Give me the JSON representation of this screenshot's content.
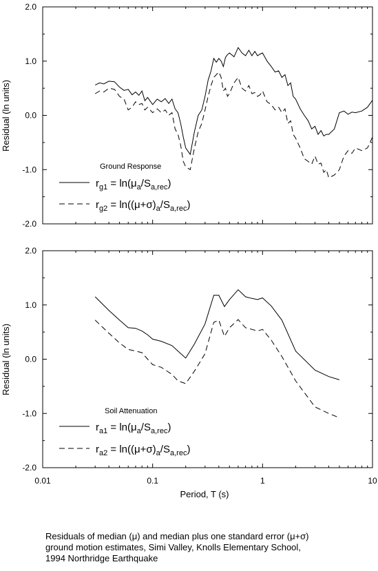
{
  "chart_data": [
    {
      "type": "line",
      "panel": "top",
      "ylabel": "Residual (ln units)",
      "ylim": [
        -2.0,
        2.0
      ],
      "yticks": [
        "2.0",
        "1.0",
        "0.0",
        "-1.0",
        "-2.0"
      ],
      "xscale": "log",
      "xlim": [
        0.01,
        10
      ],
      "legend_title": "Ground Response",
      "grid": false,
      "series": [
        {
          "name": "r_g1 = ln(μ_a/S_a,rec)",
          "legend_label": {
            "main": "r",
            "sub": "g1",
            "eq": " = ln(μ",
            "sub2": "a",
            "mid": "/S",
            "sub3": "a,rec",
            "end": ")"
          },
          "style": "solid",
          "x": [
            0.03,
            0.033,
            0.036,
            0.04,
            0.045,
            0.05,
            0.055,
            0.06,
            0.065,
            0.07,
            0.075,
            0.08,
            0.085,
            0.09,
            0.1,
            0.11,
            0.12,
            0.13,
            0.14,
            0.15,
            0.16,
            0.17,
            0.18,
            0.19,
            0.2,
            0.22,
            0.24,
            0.26,
            0.28,
            0.3,
            0.32,
            0.34,
            0.36,
            0.38,
            0.4,
            0.42,
            0.44,
            0.46,
            0.48,
            0.5,
            0.55,
            0.6,
            0.65,
            0.7,
            0.75,
            0.8,
            0.85,
            0.9,
            0.95,
            1.0,
            1.1,
            1.2,
            1.3,
            1.4,
            1.5,
            1.6,
            1.7,
            1.8,
            1.9,
            2.0,
            2.2,
            2.4,
            2.6,
            2.8,
            3.0,
            3.2,
            3.4,
            3.6,
            3.8,
            4.0,
            4.5,
            5.0,
            5.5,
            6.0,
            6.5,
            7.0,
            8.0,
            9.0,
            10.0
          ],
          "values": [
            0.56,
            0.6,
            0.58,
            0.63,
            0.62,
            0.52,
            0.46,
            0.48,
            0.38,
            0.43,
            0.37,
            0.45,
            0.27,
            0.33,
            0.2,
            0.3,
            0.25,
            0.31,
            0.22,
            0.3,
            0.12,
            0.05,
            -0.15,
            -0.4,
            -0.6,
            -0.72,
            -0.3,
            0.0,
            0.1,
            0.35,
            0.65,
            0.82,
            1.05,
            0.98,
            1.05,
            1.0,
            0.9,
            1.07,
            1.12,
            1.15,
            1.08,
            1.25,
            1.15,
            1.1,
            1.2,
            1.1,
            1.18,
            1.1,
            1.13,
            1.15,
            1.0,
            0.9,
            0.8,
            0.82,
            0.7,
            0.75,
            0.55,
            0.6,
            0.35,
            0.3,
            0.12,
            0.0,
            -0.1,
            -0.25,
            -0.2,
            -0.35,
            -0.28,
            -0.38,
            -0.35,
            -0.35,
            -0.25,
            0.05,
            0.08,
            0.02,
            0.06,
            0.05,
            0.08,
            0.15,
            0.28
          ]
        },
        {
          "name": "r_g2 = ln((μ+σ)_a/S_a,rec)",
          "legend_label": {
            "main": "r",
            "sub": "g2",
            "eq": " = ln((μ+σ)",
            "sub2": "a",
            "mid": "/S",
            "sub3": "a,rec",
            "end": ")"
          },
          "style": "dashed",
          "x": [
            0.03,
            0.033,
            0.036,
            0.04,
            0.045,
            0.05,
            0.055,
            0.06,
            0.065,
            0.07,
            0.075,
            0.08,
            0.085,
            0.09,
            0.1,
            0.11,
            0.12,
            0.13,
            0.14,
            0.15,
            0.16,
            0.17,
            0.18,
            0.19,
            0.2,
            0.22,
            0.24,
            0.26,
            0.28,
            0.3,
            0.32,
            0.34,
            0.36,
            0.38,
            0.4,
            0.42,
            0.44,
            0.46,
            0.48,
            0.5,
            0.55,
            0.6,
            0.65,
            0.7,
            0.75,
            0.8,
            0.85,
            0.9,
            0.95,
            1.0,
            1.1,
            1.2,
            1.3,
            1.4,
            1.5,
            1.6,
            1.7,
            1.8,
            1.9,
            2.0,
            2.2,
            2.4,
            2.6,
            2.8,
            3.0,
            3.2,
            3.4,
            3.6,
            3.8,
            4.0,
            4.5,
            5.0,
            5.5,
            6.0,
            6.5,
            7.0,
            8.0,
            9.0,
            10.0
          ],
          "values": [
            0.4,
            0.45,
            0.43,
            0.5,
            0.48,
            0.35,
            0.3,
            0.1,
            0.15,
            0.25,
            0.2,
            0.22,
            0.1,
            0.15,
            0.05,
            0.12,
            0.05,
            0.1,
            0.0,
            0.05,
            -0.25,
            -0.35,
            -0.55,
            -0.85,
            -0.95,
            -1.0,
            -0.6,
            -0.3,
            -0.15,
            0.1,
            0.35,
            0.55,
            0.7,
            0.75,
            0.8,
            0.7,
            0.45,
            0.5,
            0.35,
            0.4,
            0.6,
            0.7,
            0.5,
            0.45,
            0.55,
            0.4,
            0.42,
            0.35,
            0.38,
            0.45,
            0.25,
            0.2,
            0.1,
            0.15,
            0.05,
            0.12,
            -0.15,
            -0.1,
            -0.35,
            -0.42,
            -0.6,
            -0.8,
            -0.85,
            -0.9,
            -0.75,
            -0.9,
            -0.88,
            -1.05,
            -1.0,
            -1.15,
            -1.1,
            -1.0,
            -0.75,
            -0.65,
            -0.7,
            -0.6,
            -0.65,
            -0.6,
            -0.4
          ]
        }
      ]
    },
    {
      "type": "line",
      "panel": "bottom",
      "ylabel": "Residual (ln units)",
      "xlabel": "Period, T (s)",
      "ylim": [
        -2.0,
        2.0
      ],
      "yticks": [
        "2.0",
        "1.0",
        "0.0",
        "-1.0",
        "-2.0"
      ],
      "xscale": "log",
      "xlim": [
        0.01,
        10
      ],
      "xticks": [
        "0.01",
        "0.1",
        "1",
        "10"
      ],
      "legend_title": "Soil Attenuation",
      "grid": false,
      "series": [
        {
          "name": "r_a1 = ln(μ_a/S_a,rec)",
          "legend_label": {
            "main": "r",
            "sub": "a1",
            "eq": " = ln(μ",
            "sub2": "a",
            "mid": "/S",
            "sub3": "a,rec",
            "end": ")"
          },
          "style": "solid",
          "x": [
            0.03,
            0.04,
            0.05,
            0.06,
            0.07,
            0.08,
            0.09,
            0.1,
            0.12,
            0.15,
            0.17,
            0.2,
            0.24,
            0.3,
            0.36,
            0.4,
            0.45,
            0.5,
            0.6,
            0.7,
            0.8,
            0.9,
            1.0,
            1.2,
            1.5,
            2.0,
            3.0,
            4.0,
            5.0
          ],
          "values": [
            1.15,
            0.9,
            0.72,
            0.58,
            0.57,
            0.52,
            0.45,
            0.37,
            0.33,
            0.25,
            0.15,
            0.02,
            0.28,
            0.65,
            1.18,
            1.18,
            0.97,
            1.1,
            1.28,
            1.15,
            1.12,
            1.1,
            1.13,
            0.98,
            0.72,
            0.15,
            -0.2,
            -0.32,
            -0.38
          ]
        },
        {
          "name": "r_a2 = ln((μ+σ)_a/S_a,rec)",
          "legend_label": {
            "main": "r",
            "sub": "a2",
            "eq": " = ln((μ+σ)",
            "sub2": "a",
            "mid": "/S",
            "sub3": "a,rec",
            "end": ")"
          },
          "style": "dashed",
          "x": [
            0.03,
            0.04,
            0.05,
            0.06,
            0.07,
            0.08,
            0.09,
            0.1,
            0.12,
            0.15,
            0.17,
            0.2,
            0.24,
            0.3,
            0.36,
            0.4,
            0.45,
            0.5,
            0.6,
            0.7,
            0.8,
            0.9,
            1.0,
            1.2,
            1.5,
            2.0,
            3.0,
            4.0,
            5.0
          ],
          "values": [
            0.72,
            0.48,
            0.3,
            0.18,
            0.15,
            0.12,
            0.0,
            -0.1,
            -0.15,
            -0.28,
            -0.4,
            -0.45,
            -0.22,
            0.1,
            0.68,
            0.72,
            0.42,
            0.58,
            0.73,
            0.58,
            0.55,
            0.52,
            0.55,
            0.35,
            0.05,
            -0.4,
            -0.88,
            -1.0,
            -1.08
          ]
        }
      ]
    }
  ],
  "caption": {
    "line1": "Residuals of median (μ) and median plus one standard error (μ+σ)",
    "line2": "ground motion estimates, Simi Valley, Knolls Elementary School,",
    "line3": "1994 Northridge Earthquake"
  }
}
